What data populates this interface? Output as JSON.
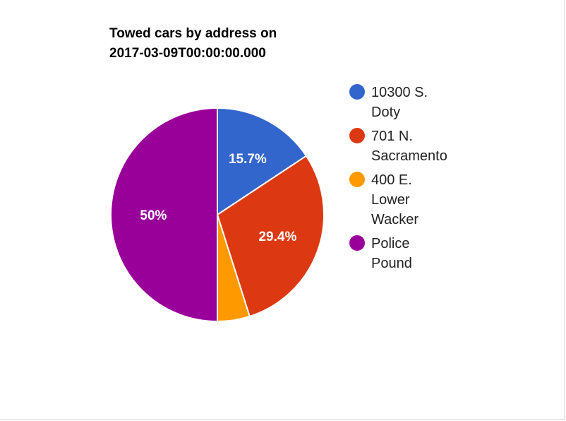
{
  "chart_data": {
    "type": "pie",
    "title": "Towed cars by address on 2017-03-09T00:00:00.000",
    "title_lines": [
      "Towed cars by address on",
      "2017-03-09T00:00:00.000"
    ],
    "categories": [
      "10300 S. Doty",
      "701 N. Sacramento",
      "400 E. Lower Wacker",
      "Police Pound"
    ],
    "values": [
      15.7,
      29.4,
      4.9,
      50.0
    ],
    "data_labels": [
      "15.7%",
      "29.4%",
      "",
      "50%"
    ],
    "legend": {
      "position": "right",
      "entries": [
        {
          "label_lines": [
            "10300 S.",
            "Doty"
          ],
          "color": "#3366cc"
        },
        {
          "label_lines": [
            "701 N.",
            "Sacramento"
          ],
          "color": "#dc3912"
        },
        {
          "label_lines": [
            "400 E.",
            "Lower",
            "Wacker"
          ],
          "color": "#ff9900"
        },
        {
          "label_lines": [
            "Police",
            "Pound"
          ],
          "color": "#990099"
        }
      ]
    },
    "colors": [
      "#3366cc",
      "#dc3912",
      "#ff9900",
      "#990099"
    ],
    "start_angle_deg": 0,
    "direction": "clockwise"
  }
}
